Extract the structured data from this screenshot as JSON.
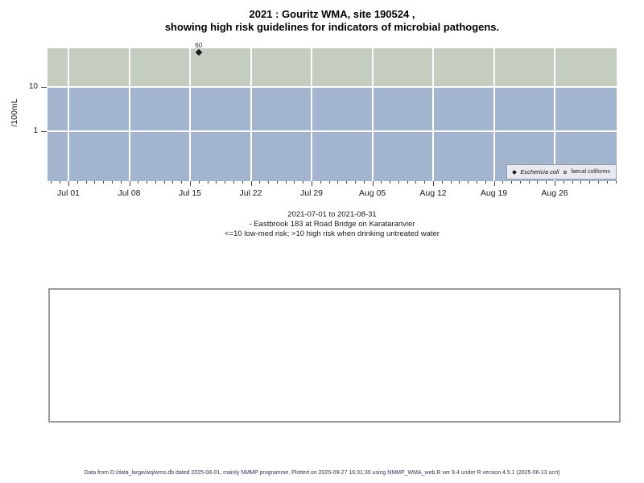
{
  "title": {
    "line1": "2021 : Gouritz WMA, site 190524 ,",
    "line2": "showing high risk guidelines for indicators of microbial pathogens."
  },
  "caption": {
    "line1": "2021-07-01 to 2021-08-31",
    "line2": "- Eastbrook 183 at Road Bridge on Karatararivier",
    "line3": "<=10 low-med risk; >10 high risk when drinking untreated water"
  },
  "footer": {
    "text": "Data from D:/data_large/wq/wms.db dated 2025-08-01, mainly NMMP programme. Plotted on 2025-09-27 16:31:30 using NMMP_WMA_web.R ver 9.4 under R version 4.5.1 (2025-06-13 ucrt)",
    "color": "#333355"
  },
  "chart_data": {
    "type": "scatter",
    "title": "2021 : Gouritz WMA, site 190524 , showing high risk guidelines for indicators of microbial pathogens.",
    "xlabel": "",
    "ylabel": "/100mL",
    "y_scale": "log10",
    "y_ticks": [
      10,
      1
    ],
    "ylim_approx": [
      0.075,
      75
    ],
    "x_tick_labels": [
      "Jul 01",
      "Jul 08",
      "Jul 15",
      "Jul 22",
      "Jul 29",
      "Aug 05",
      "Aug 12",
      "Aug 19",
      "Aug 26"
    ],
    "x_minor_ticks": "daily",
    "x_range_days_rel_jul01": [
      -2,
      63
    ],
    "grid": true,
    "gridline_color": "#ffffff",
    "risk_bands": [
      {
        "name": "high risk (>10)",
        "color": "#c5cdc1",
        "from": 10,
        "to": "top"
      },
      {
        "name": "low-med risk (<=10)",
        "color": "#a3b4cf",
        "from": "bottom",
        "to": 10
      }
    ],
    "series": [
      {
        "name": "Eschericia coli",
        "marker": "filled-diamond",
        "points": [
          {
            "day_offset_from_jul01": 15,
            "value": 60,
            "label": "60"
          }
        ]
      },
      {
        "name": "faecal coliforms",
        "marker": "open-circle",
        "points": []
      }
    ],
    "legend": {
      "position": "bottom-right",
      "background": "#e9e9f1",
      "entries": [
        "Eschericia coli",
        "faecal coliforms"
      ]
    }
  }
}
